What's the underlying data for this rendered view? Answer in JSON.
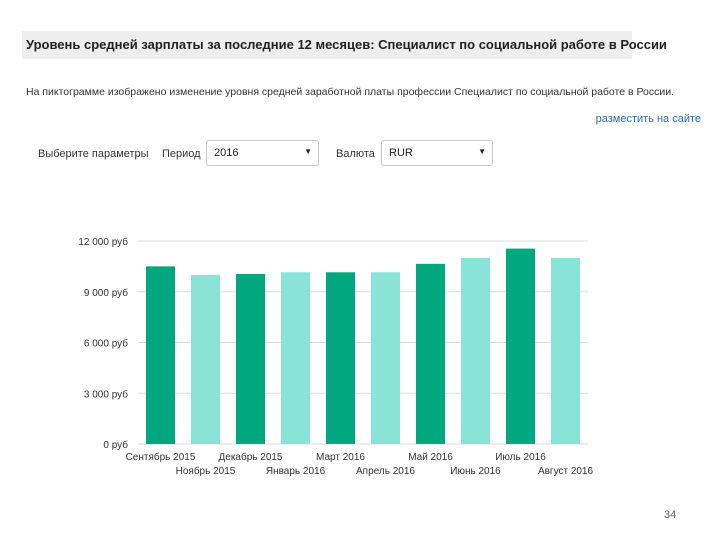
{
  "header": {
    "title": "Уровень средней зарплаты за последние 12 месяцев: Специалист по социальной работе в России",
    "description": "На пиктограмме изображено изменение уровня средней заработной платы профессии Специалист по социальной работе в России.",
    "embed_link": "разместить на сайте"
  },
  "params": {
    "label": "Выберите параметры",
    "period_label": "Период",
    "period_value": "2016",
    "currency_label": "Валюта",
    "currency_value": "RUR",
    "dropdown_icon": "triangle-down"
  },
  "colors": {
    "dark_bar": "#00a77f",
    "light_bar": "#8ae3d7",
    "grid": "#dddddd",
    "axis_text": "#333333"
  },
  "chart_data": {
    "type": "bar",
    "categories": [
      "Сентябрь 2015",
      "Ноябрь 2015",
      "Декабрь 2015",
      "Январь 2016",
      "Март 2016",
      "Апрель 2016",
      "Май 2016",
      "Июнь 2016",
      "Июль 2016",
      "Август 2016"
    ],
    "values": [
      10500,
      10000,
      10050,
      10150,
      10150,
      10150,
      10650,
      11000,
      11550,
      11000
    ],
    "bar_styles": [
      "dark",
      "light",
      "dark",
      "light",
      "dark",
      "light",
      "dark",
      "light",
      "dark",
      "light"
    ],
    "yticks": [
      "0 руб",
      "3 000 руб",
      "6 000 руб",
      "9 000 руб",
      "12 000 руб"
    ],
    "ytick_values": [
      0,
      3000,
      6000,
      9000,
      12000
    ],
    "ylim": [
      0,
      12000
    ],
    "grid": true,
    "title": "",
    "xlabel": "",
    "ylabel": ""
  },
  "footer": {
    "page_number": "34"
  }
}
